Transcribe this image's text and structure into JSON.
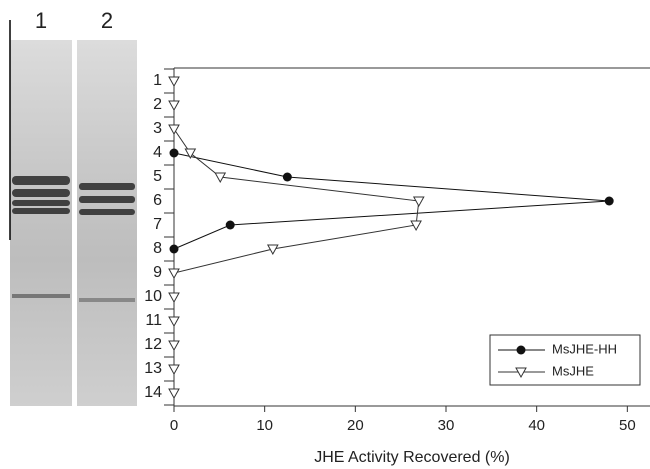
{
  "gel_lanes": [
    "1",
    "2"
  ],
  "chart_data": {
    "type": "line",
    "orientation": "horizontal",
    "categories": [
      "1",
      "2",
      "3",
      "4",
      "5",
      "6",
      "7",
      "8",
      "9",
      "10",
      "11",
      "12",
      "13",
      "14"
    ],
    "xlabel": "JHE Activity Recovered (%)",
    "xlim": [
      0,
      52.5
    ],
    "xticks": [
      0,
      10,
      20,
      30,
      40,
      50
    ],
    "legend": "lower right",
    "series": [
      {
        "name": "MsJHE-HH",
        "color": "#111111",
        "marker": "circle",
        "values": [
          null,
          null,
          null,
          0,
          12.5,
          48,
          6.2,
          0,
          null,
          null,
          null,
          null,
          null,
          null
        ]
      },
      {
        "name": "MsJHE",
        "color": "#333333",
        "marker": "triangle-down",
        "values": [
          0,
          0,
          0,
          1.8,
          5.1,
          27,
          26.7,
          10.9,
          0,
          0,
          0,
          0,
          0,
          0
        ]
      }
    ]
  }
}
